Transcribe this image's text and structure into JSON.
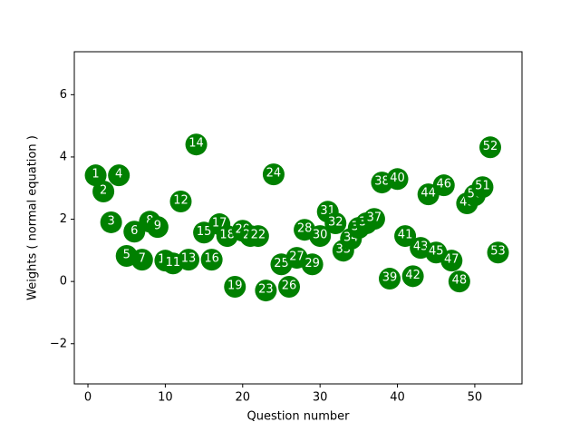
{
  "chart_data": {
    "type": "scatter",
    "x_label": "Question number",
    "y_label": "Weights ( normal equation )",
    "color": "#008000",
    "x": [
      1,
      2,
      3,
      4,
      5,
      6,
      7,
      8,
      9,
      10,
      11,
      12,
      13,
      14,
      15,
      16,
      17,
      18,
      19,
      20,
      21,
      22,
      23,
      24,
      25,
      26,
      27,
      28,
      29,
      30,
      31,
      32,
      33,
      34,
      35,
      36,
      37,
      38,
      39,
      40,
      41,
      42,
      43,
      44,
      45,
      46,
      47,
      48,
      49,
      50,
      51,
      52,
      53
    ],
    "values": [
      3.41,
      2.89,
      1.9,
      3.41,
      0.82,
      1.6,
      0.7,
      1.92,
      1.75,
      0.67,
      0.58,
      2.57,
      0.7,
      4.4,
      1.57,
      0.7,
      1.84,
      1.46,
      -0.17,
      1.63,
      1.46,
      1.46,
      -0.29,
      3.44,
      0.55,
      -0.17,
      0.76,
      1.66,
      0.55,
      1.46,
      2.24,
      1.87,
      0.99,
      1.37,
      1.72,
      1.87,
      2.01,
      3.18,
      0.09,
      3.29,
      1.46,
      0.17,
      1.08,
      2.8,
      0.93,
      3.09,
      0.67,
      0.0,
      2.51,
      2.77,
      3.03,
      4.31,
      0.93
    ],
    "xlim": [
      -1.76,
      56.1
    ],
    "ylim": [
      -3.29,
      7.38
    ],
    "xticks": [
      0,
      10,
      20,
      30,
      40,
      50
    ],
    "yticks": [
      {
        "value": -2,
        "label": "−2"
      },
      0,
      2,
      4,
      6
    ]
  }
}
